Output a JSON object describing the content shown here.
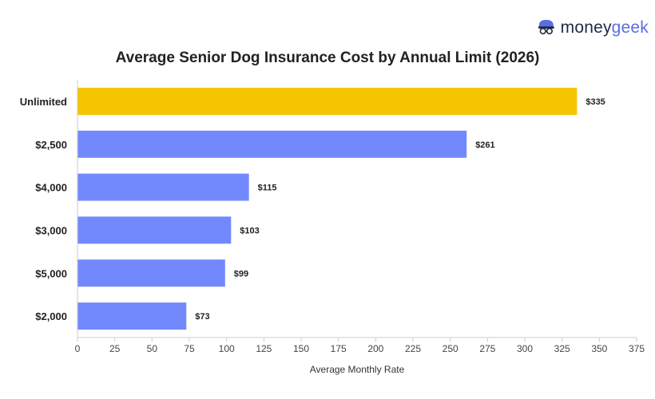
{
  "brand": {
    "name_part1": "money",
    "name_part2": "geek",
    "logo_icon": "moneygeek-mascot-icon"
  },
  "colors": {
    "highlight": "#f5c400",
    "bar": "#7289fd",
    "axis": "#cccccc",
    "text": "#222222",
    "brand_dark": "#1f2a44",
    "brand_blue": "#5b6ee1"
  },
  "chart_data": {
    "type": "bar",
    "orientation": "horizontal",
    "title": "Average Senior Dog Insurance Cost by Annual Limit (2026)",
    "xlabel": "Average Monthly Rate",
    "ylabel": "",
    "categories": [
      "Unlimited",
      "$2,500",
      "$4,000",
      "$3,000",
      "$5,000",
      "$2,000"
    ],
    "values": [
      335,
      261,
      115,
      103,
      99,
      73
    ],
    "data_labels": [
      "$335",
      "$261",
      "$115",
      "$103",
      "$99",
      "$73"
    ],
    "highlighted_category": "Unlimited",
    "xlim": [
      0,
      375
    ],
    "xticks": [
      0,
      25,
      50,
      75,
      100,
      125,
      150,
      175,
      200,
      225,
      250,
      275,
      300,
      325,
      350,
      375
    ],
    "grid": false,
    "legend": "none"
  }
}
